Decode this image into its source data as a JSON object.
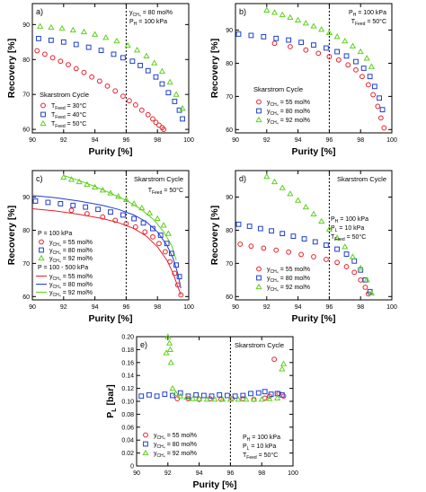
{
  "colors": {
    "red": "#e8202a",
    "blue": "#1f3fcc",
    "green": "#5fd21e",
    "axis": "#000000"
  },
  "chart_data": [
    {
      "panel": "a)",
      "type": "scatter",
      "xlabel": "Purity [%]",
      "ylabel": "Recovery [%]",
      "xlim": [
        90,
        100
      ],
      "ylim": [
        59,
        96
      ],
      "x_ticks": [
        "90",
        "92",
        "94",
        "96",
        "98",
        "100"
      ],
      "y_ticks": [
        "60",
        "70",
        "80",
        "90"
      ],
      "vline": 96,
      "annotations": [
        "y",
        "CH₄",
        " = 80 mol%",
        "P",
        "H",
        " = 100 kPa"
      ],
      "legend_title": "Skarstrom Cycle",
      "legend_position": "bottom-left",
      "series": [
        {
          "name_base": "T",
          "name_sub": "Feed",
          "name_rest": " = 30°C",
          "marker": "circle",
          "color": "red",
          "x": [
            90.3,
            90.8,
            91.3,
            91.8,
            92.3,
            92.8,
            93.3,
            93.8,
            94.3,
            94.8,
            95.3,
            95.8,
            96.2,
            96.6,
            97.0,
            97.4,
            97.7,
            97.9,
            98.1,
            98.3,
            98.4
          ],
          "y": [
            82.5,
            81.5,
            80.5,
            79.5,
            78.5,
            77.4,
            76.3,
            75.0,
            73.8,
            72.4,
            71.0,
            69.5,
            68.2,
            67.0,
            65.5,
            64.2,
            63.0,
            62.0,
            61.2,
            60.5,
            60.0
          ]
        },
        {
          "name_base": "T",
          "name_sub": "Feed",
          "name_rest": " = 40°C",
          "marker": "square",
          "color": "blue",
          "x": [
            90.4,
            91.2,
            92.0,
            92.8,
            93.6,
            94.4,
            95.2,
            95.8,
            96.4,
            96.9,
            97.4,
            97.9,
            98.3,
            98.7,
            99.1,
            99.4,
            99.6
          ],
          "y": [
            86.0,
            85.5,
            85.0,
            84.3,
            83.5,
            82.6,
            81.5,
            80.5,
            79.5,
            78.3,
            76.8,
            75.0,
            73.0,
            70.5,
            68.0,
            65.5,
            63.0
          ]
        },
        {
          "name_base": "T",
          "name_sub": "Feed",
          "name_rest": " = 50°C",
          "marker": "triangle",
          "color": "green",
          "x": [
            90.5,
            91.2,
            91.9,
            92.6,
            93.3,
            94.0,
            94.7,
            95.4,
            96.1,
            96.7,
            97.3,
            97.8,
            98.3,
            98.8,
            99.2,
            99.6
          ],
          "y": [
            89.5,
            89.2,
            88.9,
            88.4,
            87.9,
            87.2,
            86.3,
            85.3,
            84.0,
            82.7,
            81.0,
            79.0,
            76.6,
            73.5,
            70.0,
            66.0
          ]
        }
      ]
    },
    {
      "panel": "b)",
      "type": "scatter",
      "xlabel": "Purity [%]",
      "ylabel": "Recovery [%]",
      "xlim": [
        90,
        100
      ],
      "ylim": [
        59,
        98
      ],
      "x_ticks": [
        "90",
        "92",
        "94",
        "96",
        "98",
        "100"
      ],
      "y_ticks": [
        "60",
        "70",
        "80",
        "90"
      ],
      "vline": 96,
      "annotations": [
        "P",
        "H",
        " = 100 kPa",
        "T",
        "Feed",
        " = 50°C"
      ],
      "legend_title": "Skarstrom Cycle",
      "legend_position": "bottom-left",
      "series": [
        {
          "name_base": "y",
          "name_sub": "CH₄",
          "name_rest": " = 55 mol%",
          "marker": "circle",
          "color": "red",
          "x": [
            92.5,
            93.5,
            94.5,
            95.3,
            96.0,
            96.6,
            97.2,
            97.7,
            98.1,
            98.5,
            98.8,
            99.1,
            99.3,
            99.5
          ],
          "y": [
            86.0,
            85.0,
            84.0,
            83.0,
            82.0,
            81.0,
            79.5,
            78.0,
            76.0,
            73.5,
            70.5,
            67.0,
            63.5,
            60.5
          ]
        },
        {
          "name_base": "y",
          "name_sub": "CH₄",
          "name_rest": " = 80 mol%",
          "marker": "square",
          "color": "blue",
          "x": [
            90.2,
            91.0,
            91.8,
            92.6,
            93.4,
            94.2,
            95.0,
            95.8,
            96.5,
            97.1,
            97.7,
            98.2,
            98.6,
            98.9,
            99.2,
            99.4
          ],
          "y": [
            88.8,
            88.4,
            88.0,
            87.5,
            87.0,
            86.3,
            85.5,
            84.6,
            83.5,
            82.2,
            80.5,
            78.5,
            76.0,
            73.0,
            69.5,
            66.0
          ]
        },
        {
          "name_base": "y",
          "name_sub": "CH₄",
          "name_rest": " = 92 mol%",
          "marker": "triangle",
          "color": "green",
          "x": [
            92.0,
            92.5,
            93.0,
            93.5,
            94.0,
            94.5,
            95.0,
            95.5,
            96.0,
            96.5,
            97.0,
            97.5,
            98.0,
            98.4,
            98.7
          ],
          "y": [
            96.0,
            95.3,
            94.6,
            93.8,
            93.0,
            92.1,
            91.2,
            90.2,
            89.2,
            88.0,
            86.7,
            85.2,
            83.5,
            81.5,
            79.0
          ]
        }
      ]
    },
    {
      "panel": "c)",
      "type": "scatter",
      "xlabel": "Purity [%]",
      "ylabel": "Recovery [%]",
      "xlim": [
        90,
        100
      ],
      "ylim": [
        59,
        98
      ],
      "x_ticks": [
        "90",
        "92",
        "94",
        "96",
        "98",
        "100"
      ],
      "y_ticks": [
        "60",
        "70",
        "80",
        "90"
      ],
      "vline": 96,
      "annotations": [
        "Skarstrom Cycle",
        "T",
        "Feed",
        " = 50°C"
      ],
      "legend_title": "P = 100 kPa",
      "legend_title2": "P = 100 - 500 kPa",
      "legend_position": "bottom-left",
      "series": [
        {
          "name_base": "y",
          "name_sub": "CH₄",
          "name_rest": " = 55 mol%",
          "marker": "circle",
          "color": "red",
          "x": [
            92.5,
            93.5,
            94.5,
            95.3,
            96.0,
            96.6,
            97.2,
            97.7,
            98.1,
            98.5,
            98.8,
            99.1,
            99.3,
            99.5
          ],
          "y": [
            86.0,
            85.0,
            84.0,
            83.0,
            82.0,
            81.0,
            79.5,
            78.0,
            76.0,
            73.5,
            70.5,
            67.0,
            63.5,
            60.5
          ]
        },
        {
          "name_base": "y",
          "name_sub": "CH₄",
          "name_rest": " = 80 mol%",
          "marker": "square",
          "color": "blue",
          "x": [
            90.2,
            91.0,
            91.8,
            92.6,
            93.4,
            94.2,
            95.0,
            95.8,
            96.5,
            97.1,
            97.7,
            98.2,
            98.6,
            98.9,
            99.2,
            99.4
          ],
          "y": [
            88.8,
            88.4,
            88.0,
            87.5,
            87.0,
            86.3,
            85.5,
            84.6,
            83.5,
            82.2,
            80.5,
            78.5,
            76.0,
            73.0,
            69.5,
            66.0
          ]
        },
        {
          "name_base": "y",
          "name_sub": "CH₄",
          "name_rest": " = 92 mol%",
          "marker": "triangle",
          "color": "green",
          "x": [
            92.0,
            92.5,
            93.0,
            93.5,
            94.0,
            94.5,
            95.0,
            95.5,
            96.0,
            96.5,
            97.0,
            97.5,
            98.0,
            98.4,
            98.7
          ],
          "y": [
            96.0,
            95.3,
            94.6,
            93.8,
            93.0,
            92.1,
            91.2,
            90.2,
            89.2,
            88.0,
            86.7,
            85.2,
            83.5,
            81.5,
            79.0
          ]
        }
      ],
      "line_series": [
        {
          "name_base": "y",
          "name_sub": "CH₄",
          "name_rest": " = 55 mol%",
          "color": "red",
          "x": [
            90.0,
            91.5,
            93.0,
            94.5,
            95.5,
            96.5,
            97.3,
            98.0,
            98.6,
            99.0,
            99.3,
            99.5
          ],
          "y": [
            86.5,
            85.8,
            84.8,
            83.5,
            82.3,
            80.5,
            78.2,
            75.0,
            71.0,
            67.0,
            63.0,
            60.5
          ]
        },
        {
          "name_base": "y",
          "name_sub": "CH₄",
          "name_rest": " = 80 mol%",
          "color": "blue",
          "x": [
            90.0,
            91.5,
            93.0,
            94.5,
            95.5,
            96.5,
            97.3,
            98.0,
            98.6,
            99.0,
            99.3,
            99.5
          ],
          "y": [
            90.5,
            89.8,
            88.8,
            87.5,
            86.3,
            84.6,
            82.5,
            79.5,
            75.5,
            71.5,
            67.0,
            62.5
          ]
        },
        {
          "name_base": "y",
          "name_sub": "CH₄",
          "name_rest": " = 92 mol%",
          "color": "green",
          "x": [
            92.0,
            93.0,
            94.0,
            95.0,
            96.0,
            97.0,
            97.8,
            98.4,
            98.9,
            99.2
          ],
          "y": [
            96.5,
            95.0,
            93.2,
            91.2,
            89.0,
            86.2,
            83.0,
            79.5,
            75.5,
            71.0
          ]
        }
      ]
    },
    {
      "panel": "d)",
      "type": "scatter",
      "xlabel": "Purity [%]",
      "ylabel": "Recovery [%]",
      "xlim": [
        90,
        100
      ],
      "ylim": [
        59,
        98
      ],
      "x_ticks": [
        "90",
        "92",
        "94",
        "96",
        "98",
        "100"
      ],
      "y_ticks": [
        "60",
        "70",
        "80",
        "90"
      ],
      "vline": 96,
      "annotations": [
        "Skarstrom Cycle",
        "P",
        "H",
        " = 100 kPa",
        "P",
        "L",
        " =  10  kPa",
        "T",
        "Feed",
        " = 50°C"
      ],
      "legend_position": "bottom-left",
      "series": [
        {
          "name_base": "y",
          "name_sub": "CH₄",
          "name_rest": " = 55 mol%",
          "marker": "circle",
          "color": "red",
          "x": [
            90.3,
            91.0,
            91.8,
            92.6,
            93.4,
            94.2,
            95.0,
            95.8,
            96.5,
            97.1,
            97.6,
            98.0,
            98.3,
            98.5
          ],
          "y": [
            75.8,
            75.2,
            74.6,
            74.0,
            73.4,
            72.7,
            72.0,
            71.2,
            70.3,
            69.0,
            67.3,
            65.0,
            62.8,
            60.8
          ]
        },
        {
          "name_base": "y",
          "name_sub": "CH₄",
          "name_rest": " = 80 mol%",
          "marker": "square",
          "color": "blue",
          "x": [
            90.2,
            90.9,
            91.6,
            92.3,
            93.0,
            93.7,
            94.4,
            95.1,
            95.8,
            96.5,
            97.1,
            97.6,
            98.0,
            98.3,
            98.6
          ],
          "y": [
            81.8,
            81.2,
            80.5,
            79.8,
            79.0,
            78.2,
            77.4,
            76.5,
            75.5,
            74.3,
            72.8,
            70.7,
            68.0,
            65.0,
            61.5
          ]
        },
        {
          "name_base": "y",
          "name_sub": "CH₄",
          "name_rest": " = 92 mol%",
          "marker": "triangle",
          "color": "green",
          "x": [
            92.0,
            92.5,
            93.0,
            93.5,
            94.0,
            94.5,
            95.0,
            95.5,
            96.0,
            96.5,
            97.0,
            97.5,
            98.0,
            98.4,
            98.7
          ],
          "y": [
            96.2,
            94.6,
            92.8,
            91.0,
            89.0,
            87.0,
            84.9,
            82.7,
            80.3,
            77.7,
            75.0,
            72.0,
            68.6,
            65.0,
            61.0
          ]
        }
      ]
    },
    {
      "panel": "e)",
      "type": "scatter",
      "xlabel": "Purity [%]",
      "ylabel": "P",
      "ylabel_sub": "L",
      "ylabel_rest": " [bar]",
      "xlim": [
        90,
        100
      ],
      "ylim": [
        0,
        0.2
      ],
      "x_ticks": [
        "90",
        "92",
        "94",
        "96",
        "98",
        "100"
      ],
      "y_ticks": [
        "0",
        "0.02",
        "0.04",
        "0.06",
        "0.08",
        "0.10",
        "0.12",
        "0.14",
        "0.16",
        "0.18",
        "0.20"
      ],
      "vline": 96,
      "annotations": [
        "Skarstrom Cycle",
        "P",
        "H",
        " = 100 kPa",
        "P",
        "L",
        " =  10  kPa",
        "T",
        "Feed",
        " = 50°C"
      ],
      "legend_position": "bottom-left",
      "series": [
        {
          "name_base": "y",
          "name_sub": "CH₄",
          "name_rest": " = 55 mol%",
          "marker": "circle",
          "color": "red",
          "x": [
            92.6,
            93.3,
            94.0,
            94.7,
            95.4,
            96.1,
            96.8,
            97.5,
            98.2,
            98.5,
            98.8,
            99.1,
            99.4
          ],
          "y": [
            0.104,
            0.104,
            0.103,
            0.104,
            0.103,
            0.104,
            0.104,
            0.103,
            0.105,
            0.108,
            0.165,
            0.112,
            0.108
          ]
        },
        {
          "name_base": "y",
          "name_sub": "CH₄",
          "name_rest": " = 80 mol%",
          "marker": "square",
          "color": "blue",
          "x": [
            90.3,
            90.8,
            91.3,
            91.8,
            92.3,
            92.8,
            93.3,
            93.8,
            94.3,
            94.8,
            95.3,
            95.8,
            96.3,
            96.8,
            97.3,
            97.8,
            98.2,
            98.6,
            99.0,
            99.3
          ],
          "y": [
            0.108,
            0.11,
            0.108,
            0.111,
            0.109,
            0.113,
            0.108,
            0.11,
            0.109,
            0.108,
            0.11,
            0.109,
            0.108,
            0.109,
            0.112,
            0.113,
            0.115,
            0.111,
            0.112,
            0.11
          ]
        },
        {
          "name_base": "y",
          "name_sub": "CH₄",
          "name_rest": " = 92 mol%",
          "marker": "triangle",
          "color": "green",
          "x": [
            91.9,
            92.0,
            92.1,
            92.15,
            92.2,
            92.3,
            92.5,
            92.8,
            93.2,
            93.6,
            94.0,
            94.5,
            95.0,
            95.5,
            96.0,
            96.5,
            97.0,
            97.5,
            98.0,
            98.5,
            99.0,
            99.3,
            99.4
          ],
          "y": [
            0.175,
            0.2,
            0.19,
            0.18,
            0.16,
            0.12,
            0.112,
            0.108,
            0.106,
            0.104,
            0.104,
            0.103,
            0.103,
            0.103,
            0.103,
            0.103,
            0.103,
            0.103,
            0.103,
            0.104,
            0.105,
            0.15,
            0.158
          ]
        }
      ]
    }
  ]
}
